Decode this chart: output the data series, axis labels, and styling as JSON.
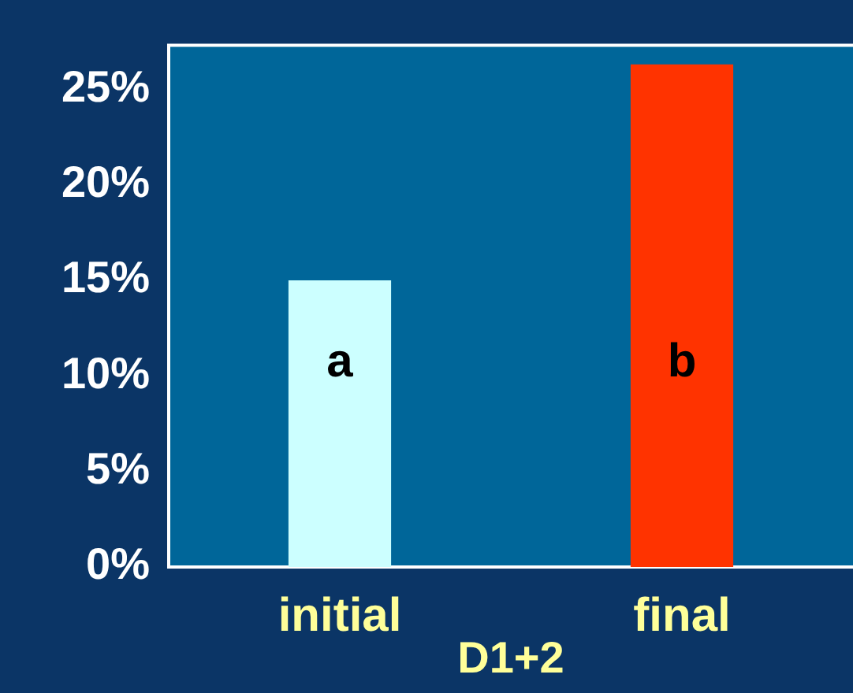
{
  "chart_data": {
    "type": "bar",
    "categories": [
      "initial",
      "final"
    ],
    "xlabel": "D1+2",
    "values": [
      15,
      26.3
    ],
    "colors": [
      "#ccffff",
      "#ff3300"
    ],
    "ylim": [
      0,
      27.3
    ],
    "yticks": [
      {
        "value": 0,
        "label": "0%"
      },
      {
        "value": 5,
        "label": "5%"
      },
      {
        "value": 10,
        "label": "10%"
      },
      {
        "value": 15,
        "label": "15%"
      },
      {
        "value": 20,
        "label": "20%"
      },
      {
        "value": 25,
        "label": "25%"
      }
    ],
    "annotations": [
      "a",
      "b"
    ],
    "grid": false,
    "legend": false
  }
}
